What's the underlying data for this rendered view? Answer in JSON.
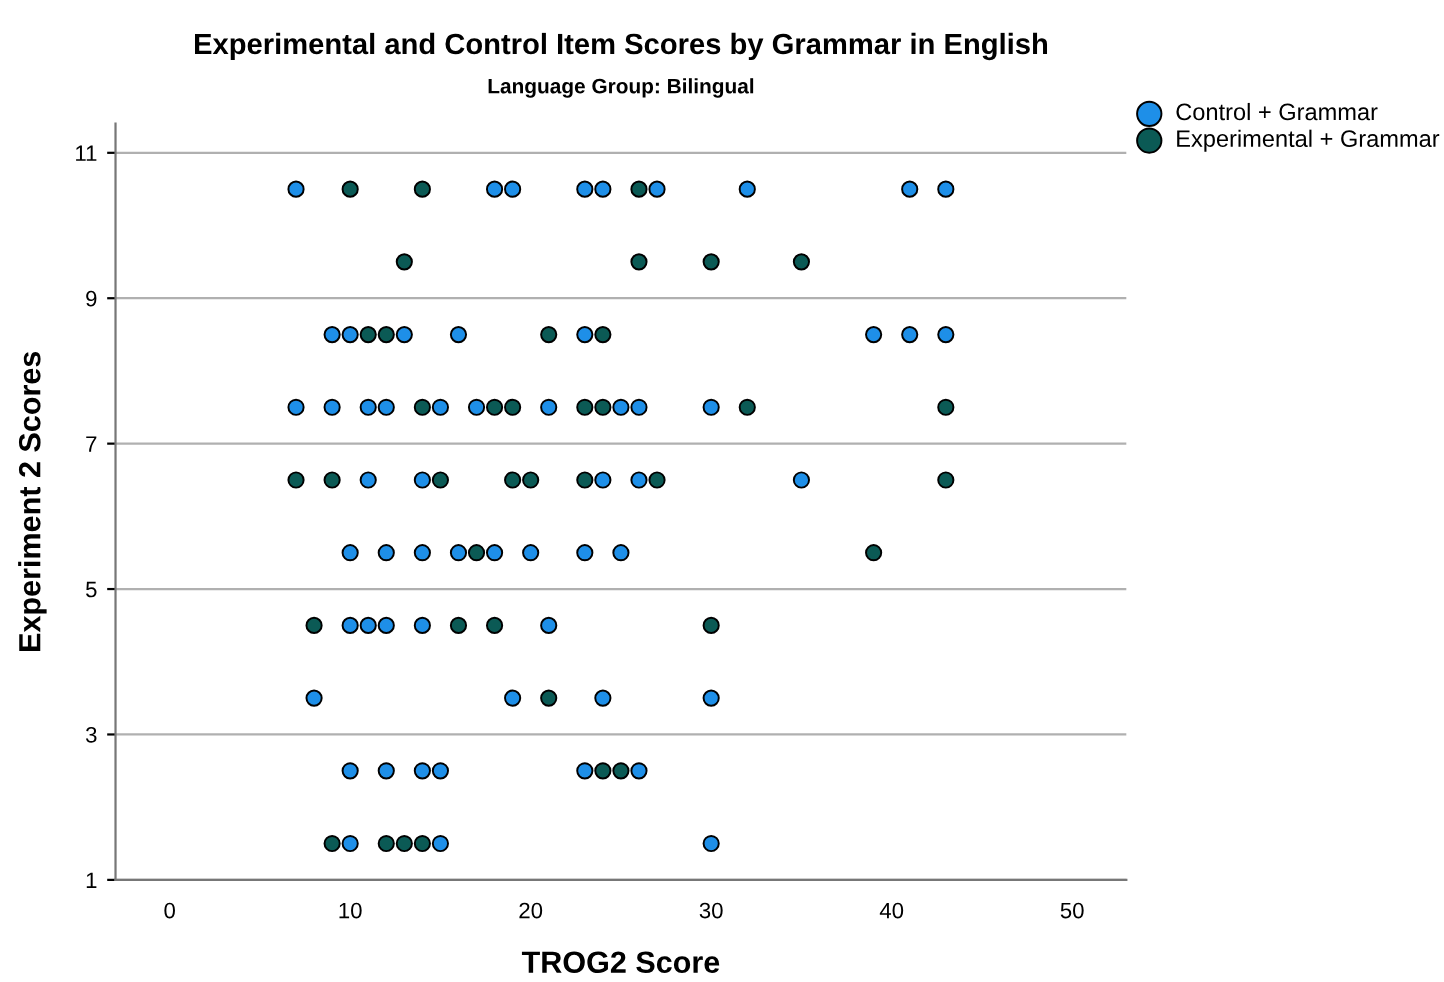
{
  "chart_data": {
    "type": "scatter",
    "title": "Experimental and Control Item Scores by Grammar in English",
    "subtitle": "Language Group: Bilingual",
    "xlabel": "TROG2 Score",
    "ylabel": "Experiment 2 Scores",
    "xlim": [
      -3,
      53
    ],
    "xticks": [
      0,
      10,
      20,
      30,
      40,
      50
    ],
    "ylim": [
      1,
      11.4
    ],
    "yticks": [
      1,
      3,
      5,
      7,
      9,
      11
    ],
    "grid": "y",
    "legend": "top right",
    "marker": "circle",
    "series": [
      {
        "name": "Control + Grammar",
        "color": "#1e8fe8",
        "x": [
          7,
          18,
          19,
          23,
          24,
          27,
          32,
          41,
          43,
          9,
          10,
          13,
          16,
          23,
          39,
          41,
          43,
          7,
          9,
          11,
          12,
          15,
          17,
          21,
          25,
          26,
          30,
          11,
          14,
          24,
          26,
          35,
          10,
          12,
          14,
          16,
          18,
          20,
          23,
          25,
          10,
          11,
          12,
          14,
          21,
          8,
          19,
          24,
          30,
          10,
          12,
          14,
          15,
          23,
          26,
          10,
          15,
          30
        ],
        "values": [
          10.5,
          10.5,
          10.5,
          10.5,
          10.5,
          10.5,
          10.5,
          10.5,
          10.5,
          8.5,
          8.5,
          8.5,
          8.5,
          8.5,
          8.5,
          8.5,
          8.5,
          7.5,
          7.5,
          7.5,
          7.5,
          7.5,
          7.5,
          7.5,
          7.5,
          7.5,
          7.5,
          6.5,
          6.5,
          6.5,
          6.5,
          6.5,
          5.5,
          5.5,
          5.5,
          5.5,
          5.5,
          5.5,
          5.5,
          5.5,
          4.5,
          4.5,
          4.5,
          4.5,
          4.5,
          3.5,
          3.5,
          3.5,
          3.5,
          2.5,
          2.5,
          2.5,
          2.5,
          2.5,
          2.5,
          1.5,
          1.5,
          1.5
        ]
      },
      {
        "name": "Experimental + Grammar",
        "color": "#0b5a55",
        "x": [
          10,
          14,
          26,
          13,
          26,
          30,
          35,
          11,
          12,
          21,
          24,
          14,
          18,
          19,
          23,
          24,
          32,
          43,
          7,
          9,
          15,
          19,
          20,
          23,
          27,
          43,
          17,
          39,
          8,
          16,
          18,
          30,
          21,
          24,
          25,
          9,
          12,
          13,
          14
        ],
        "values": [
          10.5,
          10.5,
          10.5,
          9.5,
          9.5,
          9.5,
          9.5,
          8.5,
          8.5,
          8.5,
          8.5,
          7.5,
          7.5,
          7.5,
          7.5,
          7.5,
          7.5,
          7.5,
          6.5,
          6.5,
          6.5,
          6.5,
          6.5,
          6.5,
          6.5,
          6.5,
          5.5,
          5.5,
          4.5,
          4.5,
          4.5,
          4.5,
          3.5,
          2.5,
          2.5,
          1.5,
          1.5,
          1.5,
          1.5
        ]
      }
    ]
  }
}
